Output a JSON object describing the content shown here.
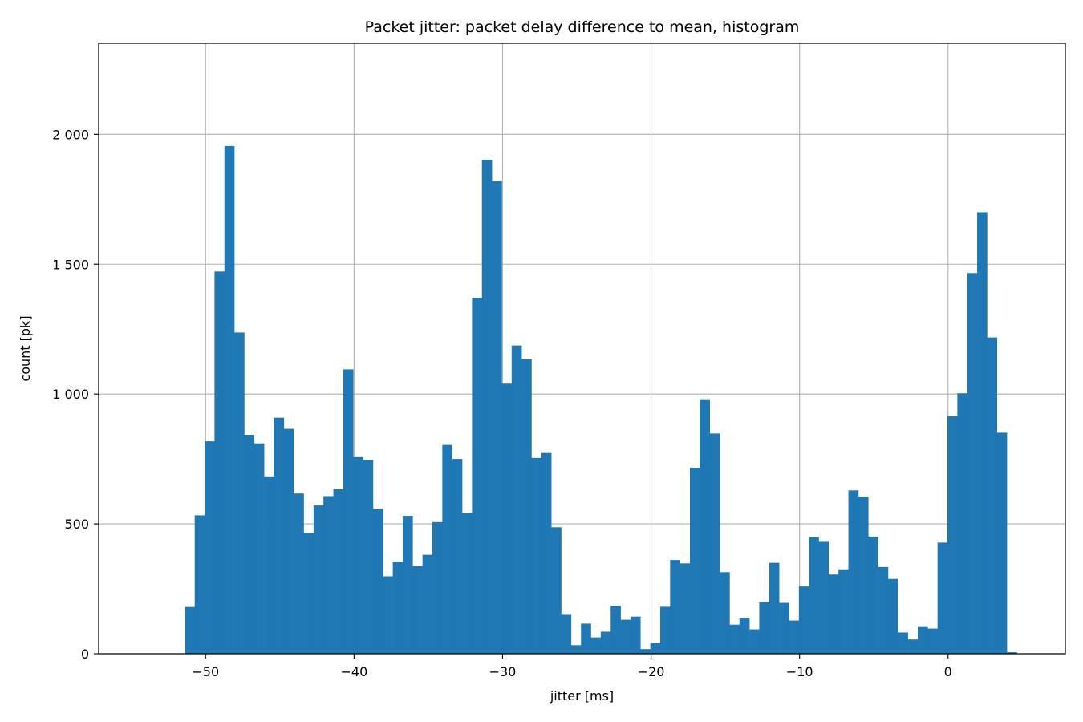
{
  "chart_data": {
    "type": "bar",
    "title": "Packet jitter: packet delay difference to mean, histogram",
    "xlabel": "jitter [ms]",
    "ylabel": "count [pk]",
    "xlim": [
      -57.2,
      7.9
    ],
    "ylim": [
      0,
      2350
    ],
    "grid": true,
    "bar_color": "#1f77b4",
    "grid_color": "#b0b0b0",
    "x_ticks": [
      {
        "value": -50,
        "label": "−50"
      },
      {
        "value": -40,
        "label": "−40"
      },
      {
        "value": -30,
        "label": "−30"
      },
      {
        "value": -20,
        "label": "−20"
      },
      {
        "value": -10,
        "label": "−10"
      },
      {
        "value": 0,
        "label": "0"
      }
    ],
    "y_ticks": [
      {
        "value": 0,
        "label": "0"
      },
      {
        "value": 500,
        "label": "500"
      },
      {
        "value": 1000,
        "label": "1 000"
      },
      {
        "value": 1500,
        "label": "1 500"
      },
      {
        "value": 2000,
        "label": "2 000"
      }
    ],
    "bin_start": -51.4,
    "bin_width": 0.667,
    "values": [
      180,
      533,
      818,
      1472,
      1955,
      1237,
      843,
      810,
      683,
      909,
      866,
      617,
      465,
      571,
      607,
      634,
      1095,
      757,
      746,
      558,
      298,
      354,
      531,
      338,
      381,
      507,
      804,
      750,
      543,
      1370,
      1902,
      1820,
      1040,
      1187,
      1134,
      754,
      773,
      487,
      153,
      33,
      116,
      63,
      85,
      184,
      131,
      143,
      18,
      41,
      181,
      361,
      348,
      716,
      980,
      848,
      314,
      112,
      139,
      94,
      198,
      350,
      196,
      128,
      259,
      449,
      434,
      305,
      325,
      629,
      605,
      451,
      334,
      288,
      82,
      55,
      106,
      97,
      428,
      914,
      1003,
      1466,
      1700,
      1218,
      851,
      6
    ]
  }
}
